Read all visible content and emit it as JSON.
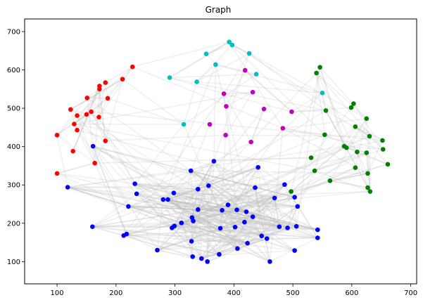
{
  "chart_data": {
    "type": "scatter",
    "title": "Graph",
    "xlabel": "",
    "ylabel": "",
    "xlim": [
      45,
      710
    ],
    "ylim": [
      42,
      733
    ],
    "xticks": [
      100,
      200,
      300,
      400,
      500,
      600,
      700
    ],
    "yticks": [
      100,
      200,
      300,
      400,
      500,
      600,
      700
    ],
    "grid": false,
    "legend": "none",
    "edge_color": "#bbbbbb",
    "series": [
      {
        "color": "#ff0000",
        "points": [
          [
            228,
            608
          ],
          [
            211,
            576
          ],
          [
            182,
            567
          ],
          [
            172,
            558
          ],
          [
            172,
            550
          ],
          [
            151,
            527
          ],
          [
            186,
            526
          ],
          [
            123,
            497
          ],
          [
            158,
            491
          ],
          [
            150,
            484
          ],
          [
            134,
            481
          ],
          [
            171,
            477
          ],
          [
            129,
            459
          ],
          [
            134,
            443
          ],
          [
            100,
            430
          ],
          [
            182,
            415
          ],
          [
            127,
            388
          ],
          [
            164,
            357
          ],
          [
            100,
            330
          ]
        ]
      },
      {
        "color": "#00bfbf",
        "points": [
          [
            392,
            673
          ],
          [
            397,
            665
          ],
          [
            353,
            642
          ],
          [
            426,
            643
          ],
          [
            369,
            614
          ],
          [
            291,
            580
          ],
          [
            438,
            589
          ],
          [
            337,
            569
          ],
          [
            550,
            540
          ],
          [
            315,
            458
          ]
        ]
      },
      {
        "color": "#bf00bf",
        "points": [
          [
            419,
            599
          ],
          [
            432,
            542
          ],
          [
            383,
            538
          ],
          [
            387,
            505
          ],
          [
            451,
            498
          ],
          [
            498,
            491
          ],
          [
            359,
            458
          ],
          [
            483,
            448
          ],
          [
            386,
            430
          ],
          [
            429,
            412
          ]
        ]
      },
      {
        "color": "#008000",
        "points": [
          [
            546,
            607
          ],
          [
            540,
            592
          ],
          [
            556,
            494
          ],
          [
            603,
            512
          ],
          [
            599,
            502
          ],
          [
            625,
            473
          ],
          [
            606,
            452
          ],
          [
            554,
            431
          ],
          [
            630,
            427
          ],
          [
            652,
            416
          ],
          [
            587,
            401
          ],
          [
            591,
            397
          ],
          [
            653,
            393
          ],
          [
            609,
            386
          ],
          [
            625,
            384
          ],
          [
            531,
            371
          ],
          [
            661,
            354
          ],
          [
            606,
            345
          ],
          [
            537,
            337
          ],
          [
            627,
            330
          ],
          [
            563,
            311
          ],
          [
            627,
            293
          ],
          [
            631,
            283
          ],
          [
            497,
            283
          ]
        ]
      },
      {
        "color": "#0000ff",
        "points": [
          [
            161,
            401
          ],
          [
            366,
            362
          ],
          [
            441,
            346
          ],
          [
            327,
            337
          ],
          [
            118,
            294
          ],
          [
            232,
            303
          ],
          [
            357,
            298
          ],
          [
            339,
            289
          ],
          [
            436,
            293
          ],
          [
            486,
            301
          ],
          [
            235,
            277
          ],
          [
            298,
            279
          ],
          [
            503,
            268
          ],
          [
            469,
            266
          ],
          [
            280,
            262
          ],
          [
            288,
            262
          ],
          [
            221,
            244
          ],
          [
            390,
            248
          ],
          [
            508,
            244
          ],
          [
            405,
            235
          ],
          [
            339,
            236
          ],
          [
            380,
            234
          ],
          [
            432,
            217
          ],
          [
            421,
            230
          ],
          [
            329,
            215
          ],
          [
            331,
            206
          ],
          [
            311,
            201
          ],
          [
            418,
            203
          ],
          [
            160,
            191
          ],
          [
            295,
            188
          ],
          [
            377,
            187
          ],
          [
            299,
            193
          ],
          [
            402,
            190
          ],
          [
            477,
            191
          ],
          [
            491,
            188
          ],
          [
            506,
            192
          ],
          [
            542,
            183
          ],
          [
            218,
            172
          ],
          [
            213,
            168
          ],
          [
            447,
            167
          ],
          [
            456,
            160
          ],
          [
            542,
            162
          ],
          [
            328,
            153
          ],
          [
            423,
            148
          ],
          [
            270,
            130
          ],
          [
            406,
            134
          ],
          [
            503,
            129
          ],
          [
            375,
            119
          ],
          [
            330,
            113
          ],
          [
            345,
            108
          ],
          [
            355,
            100
          ],
          [
            461,
            100
          ]
        ]
      }
    ],
    "edge_count": 520,
    "edge_seed": 7
  }
}
